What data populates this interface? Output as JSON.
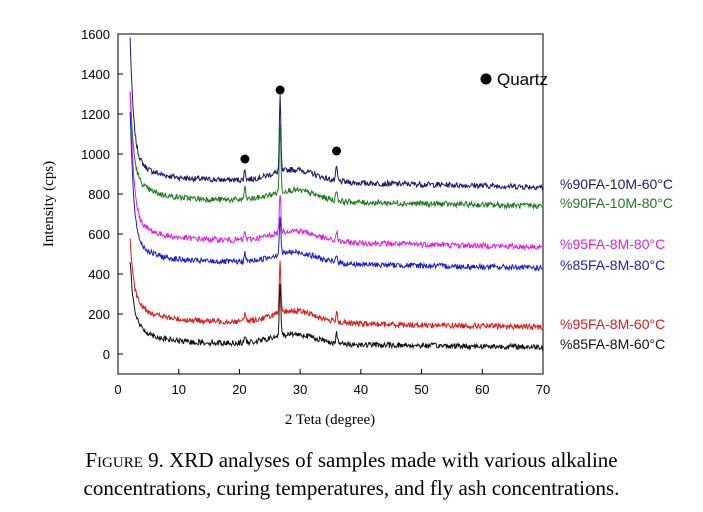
{
  "chart_data": {
    "type": "line",
    "xlabel": "2 Teta (degree)",
    "ylabel": "Intensity (cps)",
    "xlim": [
      0,
      70
    ],
    "ylim": [
      -100,
      1600
    ],
    "xticks": [
      0,
      10,
      20,
      30,
      40,
      50,
      60,
      70
    ],
    "yticks": [
      0,
      200,
      400,
      600,
      800,
      1000,
      1200,
      1400,
      1600
    ],
    "grid": false,
    "legend": {
      "symbol": "filled-circle",
      "label": "Quartz",
      "placement": "top-right"
    },
    "quartz_markers": [
      {
        "x": 20.9,
        "y": 975
      },
      {
        "x": 26.7,
        "y": 1320
      },
      {
        "x": 36.0,
        "y": 1015
      }
    ],
    "series": [
      {
        "name": "%90FA-10M-60°C",
        "color": "#1a1a6e",
        "baseline": 880,
        "end": 835,
        "spike": 1460,
        "hump": 60,
        "peaks": {
          "20.9": 50,
          "26.7": 370,
          "36.0": 70
        }
      },
      {
        "name": "%90FA-10M-80°C",
        "color": "#1f7a1f",
        "baseline": 780,
        "end": 740,
        "spike": 1200,
        "hump": 55,
        "peaks": {
          "20.9": 60,
          "26.7": 330,
          "36.0": 55
        }
      },
      {
        "name": "%95FA-8M-80°C",
        "color": "#e020e0",
        "baseline": 580,
        "end": 535,
        "spike": 1200,
        "hump": 55,
        "peaks": {
          "20.9": 40,
          "26.7": 200,
          "36.0": 50
        }
      },
      {
        "name": "%85FA-8M-80°C",
        "color": "#1c1ccc",
        "baseline": 470,
        "end": 430,
        "spike": 1100,
        "hump": 55,
        "peaks": {
          "20.9": 40,
          "26.7": 190,
          "36.0": 45
        }
      },
      {
        "name": "%95FA-8M-60°C",
        "color": "#dd1c1c",
        "baseline": 170,
        "end": 135,
        "spike": 450,
        "hump": 60,
        "peaks": {
          "20.9": 40,
          "26.7": 250,
          "36.0": 60
        }
      },
      {
        "name": "%85FA-8M-60°C",
        "color": "#111111",
        "baseline": 60,
        "end": 35,
        "spike": 350,
        "hump": 50,
        "peaks": {
          "20.9": 35,
          "26.7": 250,
          "36.0": 50
        }
      }
    ]
  },
  "caption": {
    "figure_label": "Figure 9.",
    "text_line1": "XRD analyses of samples made with various alkaline",
    "text_line2": "concentrations, curing temperatures, and fly ash concentrations."
  }
}
